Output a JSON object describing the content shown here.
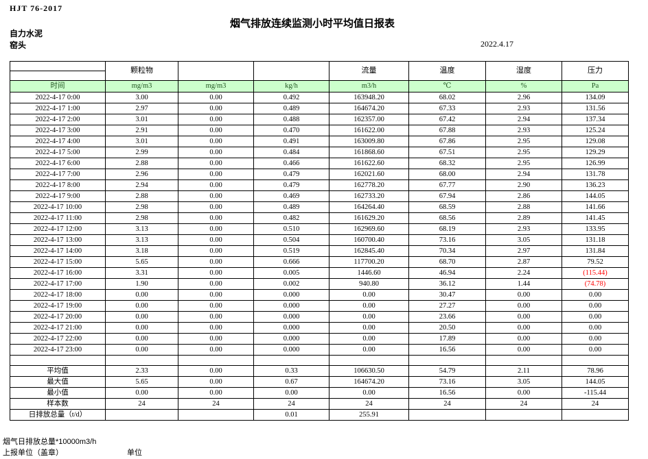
{
  "page": {
    "doc_code": "HJT  76-2017",
    "title": "烟气排放连续监测小时平均值日报表",
    "company": "自力水泥",
    "station": "窑头",
    "date": "2022.4.17"
  },
  "colors": {
    "header_green": "#ccffcc",
    "negative_red": "#ff0000"
  },
  "table": {
    "group_headers": [
      "",
      "颗粒物",
      "",
      "",
      "流量",
      "温度",
      "湿度",
      "压力"
    ],
    "unit_row": [
      "时间",
      "mg/m3",
      "mg/m3",
      "kg/h",
      "m3/h",
      "℃",
      "%",
      "Pa"
    ],
    "rows": [
      [
        "2022-4-17 0:00",
        "3.00",
        "0.00",
        "0.492",
        "163948.20",
        "68.02",
        "2.96",
        "134.09"
      ],
      [
        "2022-4-17 1:00",
        "2.97",
        "0.00",
        "0.489",
        "164674.20",
        "67.33",
        "2.93",
        "131.56"
      ],
      [
        "2022-4-17 2:00",
        "3.01",
        "0.00",
        "0.488",
        "162357.00",
        "67.42",
        "2.94",
        "137.34"
      ],
      [
        "2022-4-17 3:00",
        "2.91",
        "0.00",
        "0.470",
        "161622.00",
        "67.88",
        "2.93",
        "125.24"
      ],
      [
        "2022-4-17 4:00",
        "3.01",
        "0.00",
        "0.491",
        "163009.80",
        "67.86",
        "2.95",
        "129.08"
      ],
      [
        "2022-4-17 5:00",
        "2.99",
        "0.00",
        "0.484",
        "161868.60",
        "67.51",
        "2.95",
        "129.29"
      ],
      [
        "2022-4-17 6:00",
        "2.88",
        "0.00",
        "0.466",
        "161622.60",
        "68.32",
        "2.95",
        "126.99"
      ],
      [
        "2022-4-17 7:00",
        "2.96",
        "0.00",
        "0.479",
        "162021.60",
        "68.00",
        "2.94",
        "131.78"
      ],
      [
        "2022-4-17 8:00",
        "2.94",
        "0.00",
        "0.479",
        "162778.20",
        "67.77",
        "2.90",
        "136.23"
      ],
      [
        "2022-4-17 9:00",
        "2.88",
        "0.00",
        "0.469",
        "162733.20",
        "67.94",
        "2.86",
        "144.05"
      ],
      [
        "2022-4-17 10:00",
        "2.98",
        "0.00",
        "0.489",
        "164264.40",
        "68.59",
        "2.88",
        "141.66"
      ],
      [
        "2022-4-17 11:00",
        "2.98",
        "0.00",
        "0.482",
        "161629.20",
        "68.56",
        "2.89",
        "141.45"
      ],
      [
        "2022-4-17 12:00",
        "3.13",
        "0.00",
        "0.510",
        "162969.60",
        "68.19",
        "2.93",
        "133.95"
      ],
      [
        "2022-4-17 13:00",
        "3.13",
        "0.00",
        "0.504",
        "160700.40",
        "73.16",
        "3.05",
        "131.18"
      ],
      [
        "2022-4-17 14:00",
        "3.18",
        "0.00",
        "0.519",
        "162845.40",
        "70.34",
        "2.97",
        "131.84"
      ],
      [
        "2022-4-17 15:00",
        "5.65",
        "0.00",
        "0.666",
        "117700.20",
        "68.70",
        "2.87",
        "79.52"
      ],
      [
        "2022-4-17 16:00",
        "3.31",
        "0.00",
        "0.005",
        "1446.60",
        "46.94",
        "2.24",
        "(115.44)"
      ],
      [
        "2022-4-17 17:00",
        "1.90",
        "0.00",
        "0.002",
        "940.80",
        "36.12",
        "1.44",
        "(74.78)"
      ],
      [
        "2022-4-17 18:00",
        "0.00",
        "0.00",
        "0.000",
        "0.00",
        "30.47",
        "0.00",
        "0.00"
      ],
      [
        "2022-4-17 19:00",
        "0.00",
        "0.00",
        "0.000",
        "0.00",
        "27.27",
        "0.00",
        "0.00"
      ],
      [
        "2022-4-17 20:00",
        "0.00",
        "0.00",
        "0.000",
        "0.00",
        "23.66",
        "0.00",
        "0.00"
      ],
      [
        "2022-4-17 21:00",
        "0.00",
        "0.00",
        "0.000",
        "0.00",
        "20.50",
        "0.00",
        "0.00"
      ],
      [
        "2022-4-17 22:00",
        "0.00",
        "0.00",
        "0.000",
        "0.00",
        "17.89",
        "0.00",
        "0.00"
      ],
      [
        "2022-4-17 23:00",
        "0.00",
        "0.00",
        "0.000",
        "0.00",
        "16.56",
        "0.00",
        "0.00"
      ]
    ],
    "summary": [
      {
        "label": "平均值",
        "values": [
          "2.33",
          "0.00",
          "0.33",
          "106630.50",
          "54.79",
          "2.11",
          "78.96"
        ]
      },
      {
        "label": "最大值",
        "values": [
          "5.65",
          "0.00",
          "0.67",
          "164674.20",
          "73.16",
          "3.05",
          "144.05"
        ]
      },
      {
        "label": "最小值",
        "values": [
          "0.00",
          "0.00",
          "0.00",
          "0.00",
          "16.56",
          "0.00",
          "-115.44"
        ]
      },
      {
        "label": "样本数",
        "values": [
          "24",
          "24",
          "24",
          "24",
          "24",
          "24",
          "24"
        ]
      },
      {
        "label": "日排放总量（t/d）",
        "values": [
          "",
          "",
          "0.01",
          "255.91",
          "",
          "",
          ""
        ]
      }
    ]
  },
  "footer": {
    "note": "烟气日排放总量*10000m3/h",
    "report_unit_label": "上报单位（盖章）",
    "unit_label": "单位"
  }
}
